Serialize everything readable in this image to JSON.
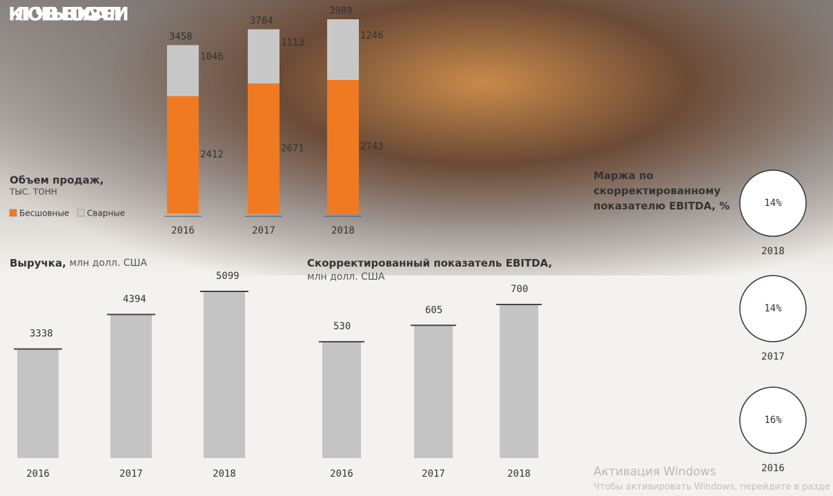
{
  "title": "КЛЮЧЕВЫЕ ПОКАЗАТЕЛИ",
  "watermark": {
    "title": "Активация Windows",
    "text": "Чтобы активировать Windows, перейдите в разде"
  },
  "chart_data": [
    {
      "type": "stacked_bar",
      "title": "Объем продаж,",
      "subtitle": "ТЫС. ТОНН",
      "categories": [
        "2016",
        "2017",
        "2018"
      ],
      "series": [
        {
          "name": "Бесшовные",
          "color": "#f07a22",
          "values": [
            2412,
            2671,
            2743
          ]
        },
        {
          "name": "Сварные",
          "color": "#c8c8c8",
          "values": [
            1046,
            1113,
            1246
          ]
        }
      ],
      "totals": [
        3458,
        3784,
        3989
      ],
      "legend": "bottom-left"
    },
    {
      "type": "bar",
      "title": "Выручка,",
      "subtitle": "млн долл. США",
      "categories": [
        "2016",
        "2017",
        "2018"
      ],
      "values": [
        3338,
        4394,
        5099
      ],
      "color": "#c4c4c4"
    },
    {
      "type": "bar",
      "title": "Скорректированный показатель EBITDA,",
      "subtitle": "млн долл. США",
      "categories": [
        "2016",
        "2017",
        "2018"
      ],
      "values": [
        530,
        605,
        700
      ],
      "color": "#c4c4c4"
    },
    {
      "type": "circles",
      "title": "Маржа по скорректированному показателю EBITDA, %",
      "categories": [
        "2018",
        "2017",
        "2016"
      ],
      "values": [
        14,
        14,
        16
      ],
      "value_labels": [
        "14%",
        "14%",
        "16%"
      ]
    }
  ]
}
